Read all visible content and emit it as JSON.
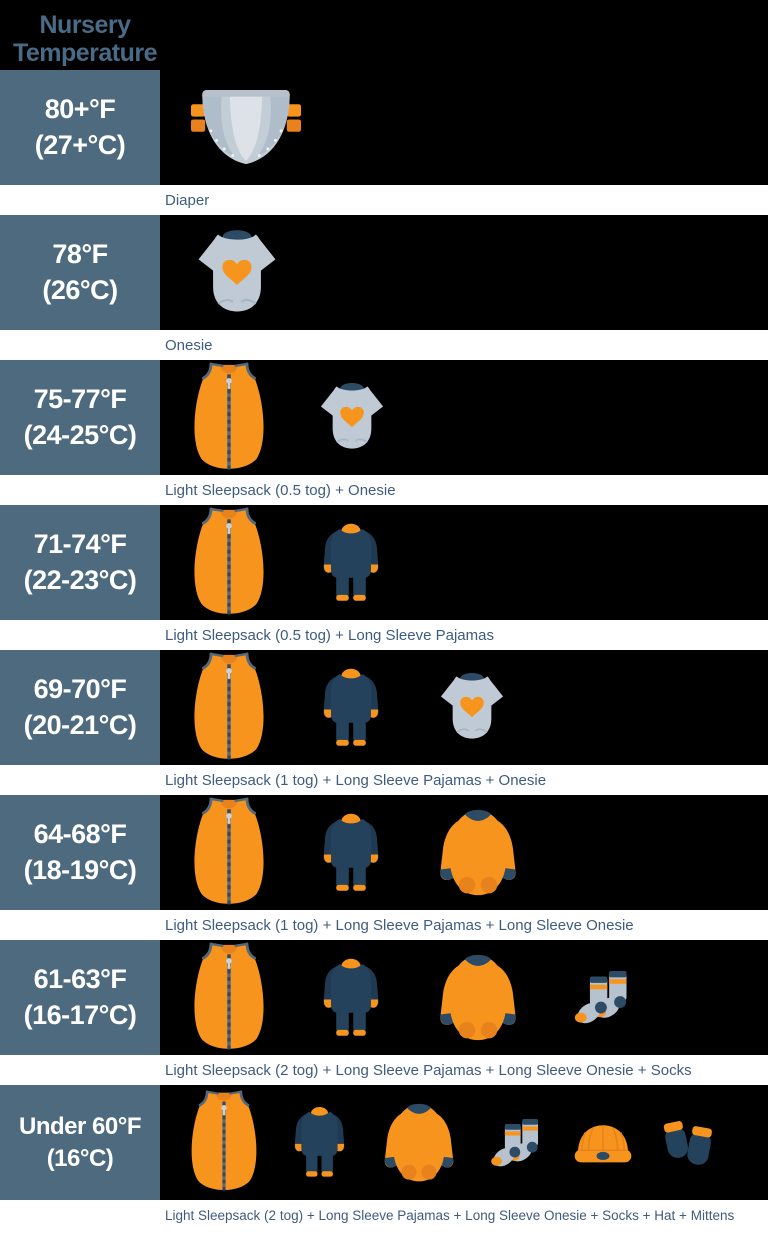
{
  "title": {
    "line1": "Nursery",
    "line2": "Temperature"
  },
  "colors": {
    "background": "#000000",
    "panel_slate": "#4D6A7E",
    "title_blue": "#4A6B85",
    "caption_blue": "#3E5C7E",
    "temp_text_white": "#FFFFFF",
    "caption_strip_white": "#FFFFFF",
    "orange": "#F7941E",
    "orange_dark": "#E8821C",
    "navy": "#24425C",
    "navy_dark": "#2E4B66",
    "gray_blue": "#BFCAD5",
    "trim_slate": "#546879"
  },
  "rows": [
    {
      "temp_f": "80+°F",
      "temp_c": "(27+°C)",
      "caption": "Diaper",
      "icons": [
        "diaper-icon"
      ]
    },
    {
      "temp_f": "78°F",
      "temp_c": "(26°C)",
      "caption": "Onesie",
      "icons": [
        "onesie-icon"
      ]
    },
    {
      "temp_f": "75-77°F",
      "temp_c": "(24-25°C)",
      "caption": "Light Sleepsack (0.5 tog) + Onesie",
      "icons": [
        "sleepsack-icon",
        "onesie-icon"
      ]
    },
    {
      "temp_f": "71-74°F",
      "temp_c": "(22-23°C)",
      "caption": "Light Sleepsack (0.5 tog) + Long Sleeve Pajamas",
      "icons": [
        "sleepsack-icon",
        "pajamas-icon"
      ]
    },
    {
      "temp_f": "69-70°F",
      "temp_c": "(20-21°C)",
      "caption": "Light Sleepsack (1 tog) + Long Sleeve Pajamas + Onesie",
      "icons": [
        "sleepsack-icon",
        "pajamas-icon",
        "onesie-icon"
      ]
    },
    {
      "temp_f": "64-68°F",
      "temp_c": "(18-19°C)",
      "caption": "Light Sleepsack (1 tog) + Long Sleeve Pajamas + Long Sleeve Onesie",
      "icons": [
        "sleepsack-icon",
        "pajamas-icon",
        "long-sleeve-onesie-icon"
      ]
    },
    {
      "temp_f": "61-63°F",
      "temp_c": "(16-17°C)",
      "caption": "Light Sleepsack (2 tog) + Long Sleeve Pajamas + Long Sleeve Onesie + Socks",
      "icons": [
        "sleepsack-icon",
        "pajamas-icon",
        "long-sleeve-onesie-icon",
        "socks-icon"
      ]
    },
    {
      "temp_f": "Under 60°F",
      "temp_c": "(16°C)",
      "caption": "Light Sleepsack (2 tog) + Long Sleeve Pajamas + Long Sleeve Onesie  + Socks + Hat + Mittens",
      "icons": [
        "sleepsack-icon",
        "pajamas-icon",
        "long-sleeve-onesie-icon",
        "socks-icon",
        "hat-icon",
        "mittens-icon"
      ]
    }
  ]
}
